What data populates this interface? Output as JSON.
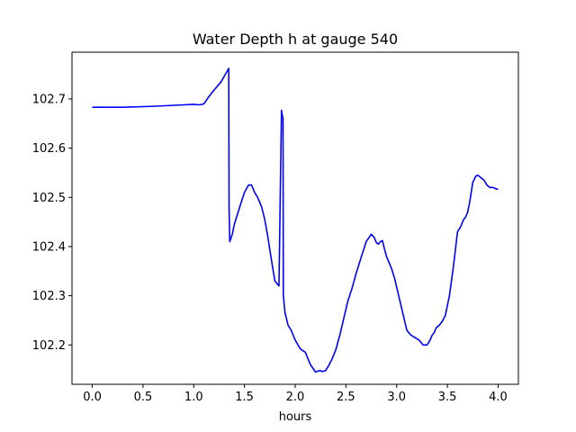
{
  "chart_data": {
    "type": "line",
    "title": "Water Depth h at gauge 540",
    "xlabel": "hours",
    "ylabel": "",
    "xlim": [
      -0.2,
      4.2
    ],
    "ylim": [
      102.12,
      102.795
    ],
    "xticks": [
      0.0,
      0.5,
      1.0,
      1.5,
      2.0,
      2.5,
      3.0,
      3.5,
      4.0
    ],
    "xtick_labels": [
      "0.0",
      "0.5",
      "1.0",
      "1.5",
      "2.0",
      "2.5",
      "3.0",
      "3.5",
      "4.0"
    ],
    "yticks": [
      102.2,
      102.3,
      102.4,
      102.5,
      102.6,
      102.7
    ],
    "ytick_labels": [
      "102.2",
      "102.3",
      "102.4",
      "102.5",
      "102.6",
      "102.7"
    ],
    "grid": false,
    "series": [
      {
        "color": "#0000ff",
        "x": [
          0.0,
          0.15,
          0.3,
          0.6,
          0.9,
          1.0,
          1.06,
          1.1,
          1.15,
          1.2,
          1.27,
          1.345,
          1.348,
          1.355,
          1.38,
          1.4,
          1.43,
          1.46,
          1.5,
          1.54,
          1.57,
          1.6,
          1.63,
          1.67,
          1.7,
          1.73,
          1.76,
          1.8,
          1.84,
          1.865,
          1.868,
          1.88,
          1.883,
          1.887,
          1.89,
          1.9,
          1.93,
          1.96,
          2.0,
          2.05,
          2.1,
          2.15,
          2.2,
          2.24,
          2.27,
          2.3,
          2.33,
          2.36,
          2.4,
          2.44,
          2.48,
          2.52,
          2.56,
          2.6,
          2.65,
          2.7,
          2.75,
          2.78,
          2.8,
          2.82,
          2.84,
          2.86,
          2.88,
          2.9,
          2.92,
          2.95,
          2.98,
          3.02,
          3.06,
          3.1,
          3.14,
          3.18,
          3.22,
          3.26,
          3.3,
          3.33,
          3.35,
          3.37,
          3.39,
          3.42,
          3.45,
          3.48,
          3.52,
          3.56,
          3.6,
          3.63,
          3.66,
          3.68,
          3.7,
          3.72,
          3.75,
          3.78,
          3.8,
          3.83,
          3.86,
          3.89,
          3.92,
          3.95,
          3.97,
          4.0
        ],
        "values": [
          102.683,
          102.683,
          102.683,
          102.685,
          102.688,
          102.689,
          102.688,
          102.69,
          102.705,
          102.718,
          102.735,
          102.762,
          102.48,
          102.41,
          102.425,
          102.445,
          102.465,
          102.485,
          102.51,
          102.525,
          102.525,
          102.51,
          102.5,
          102.48,
          102.455,
          102.42,
          102.38,
          102.33,
          102.32,
          102.677,
          102.672,
          102.66,
          102.3,
          102.295,
          102.285,
          102.265,
          102.24,
          102.23,
          102.21,
          102.192,
          102.185,
          102.16,
          102.145,
          102.148,
          102.146,
          102.148,
          102.158,
          102.17,
          102.19,
          102.22,
          102.255,
          102.29,
          102.315,
          102.345,
          102.378,
          102.41,
          102.425,
          102.418,
          102.408,
          102.405,
          102.41,
          102.412,
          102.395,
          102.38,
          102.37,
          102.355,
          102.335,
          102.3,
          102.265,
          102.23,
          102.22,
          102.215,
          102.21,
          102.2,
          102.2,
          102.21,
          102.22,
          102.225,
          102.235,
          102.24,
          102.248,
          102.26,
          102.3,
          102.36,
          102.43,
          102.44,
          102.455,
          102.46,
          102.47,
          102.49,
          102.53,
          102.543,
          102.545,
          102.54,
          102.535,
          102.525,
          102.52,
          102.52,
          102.518,
          102.516
        ]
      }
    ]
  }
}
